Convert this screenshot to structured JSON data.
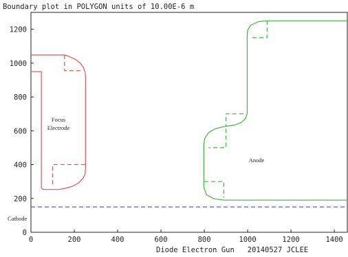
{
  "chart_data": {
    "type": "line",
    "title": "Boundary plot in POLYGON units of 10.00E-6 m",
    "footer": "Diode Electron Gun   20140527 JCLEE",
    "xlim": [
      0,
      1460
    ],
    "ylim": [
      0,
      1300
    ],
    "x_ticks": [
      0,
      200,
      400,
      600,
      800,
      1000,
      1200,
      1400
    ],
    "y_ticks": [
      0,
      200,
      400,
      600,
      800,
      1000,
      1200
    ],
    "grid": false,
    "labels": {
      "focus": "Focus\nElectrode",
      "anode": "Anode",
      "cathode": "Cathode"
    },
    "series": [
      {
        "key": "focus_electrode",
        "color": "#e05555",
        "style": "solid",
        "points": [
          [
            0,
            1048
          ],
          [
            155,
            1048
          ],
          [
            175,
            1040
          ],
          [
            205,
            1022
          ],
          [
            228,
            1000
          ],
          [
            242,
            975
          ],
          [
            250,
            945
          ],
          [
            252,
            915
          ],
          [
            252,
            380
          ],
          [
            250,
            345
          ],
          [
            240,
            318
          ],
          [
            220,
            292
          ],
          [
            192,
            272
          ],
          [
            160,
            260
          ],
          [
            130,
            253
          ],
          [
            55,
            253
          ],
          [
            48,
            262
          ],
          [
            48,
            950
          ],
          [
            0,
            950
          ]
        ]
      },
      {
        "key": "focus_dashed_top",
        "color": "#e05555",
        "style": "dashed",
        "points": [
          [
            155,
            1048
          ],
          [
            155,
            955
          ],
          [
            230,
            955
          ]
        ]
      },
      {
        "key": "focus_dashed_bottom",
        "color": "#e05555",
        "style": "dashed",
        "points": [
          [
            250,
            400
          ],
          [
            100,
            400
          ],
          [
            100,
            270
          ]
        ]
      },
      {
        "key": "anode",
        "color": "#3fb33f",
        "style": "solid",
        "points": [
          [
            1460,
            1250
          ],
          [
            1090,
            1250
          ],
          [
            1050,
            1245
          ],
          [
            1015,
            1225
          ],
          [
            1000,
            1195
          ],
          [
            998,
            1160
          ],
          [
            998,
            700
          ],
          [
            990,
            672
          ],
          [
            972,
            650
          ],
          [
            945,
            635
          ],
          [
            910,
            628
          ],
          [
            890,
            625
          ],
          [
            850,
            612
          ],
          [
            820,
            590
          ],
          [
            802,
            555
          ],
          [
            798,
            520
          ],
          [
            798,
            265
          ],
          [
            810,
            222
          ],
          [
            845,
            198
          ],
          [
            890,
            190
          ],
          [
            1460,
            190
          ]
        ]
      },
      {
        "key": "anode_dashed_1",
        "color": "#3fb33f",
        "style": "dashed",
        "points": [
          [
            1090,
            1250
          ],
          [
            1090,
            1150
          ],
          [
            1010,
            1150
          ]
        ]
      },
      {
        "key": "anode_dashed_2",
        "color": "#3fb33f",
        "style": "dashed",
        "points": [
          [
            980,
            700
          ],
          [
            900,
            700
          ],
          [
            900,
            628
          ]
        ]
      },
      {
        "key": "anode_dashed_3",
        "color": "#3fb33f",
        "style": "dashed",
        "points": [
          [
            900,
            612
          ],
          [
            900,
            500
          ],
          [
            820,
            500
          ]
        ]
      },
      {
        "key": "anode_dashed_4",
        "color": "#3fb33f",
        "style": "dashed",
        "points": [
          [
            800,
            300
          ],
          [
            890,
            300
          ],
          [
            890,
            205
          ]
        ]
      },
      {
        "key": "cathode",
        "color": "#5555ee",
        "style": "dashed",
        "points": [
          [
            0,
            150
          ],
          [
            1460,
            150
          ]
        ]
      }
    ]
  }
}
